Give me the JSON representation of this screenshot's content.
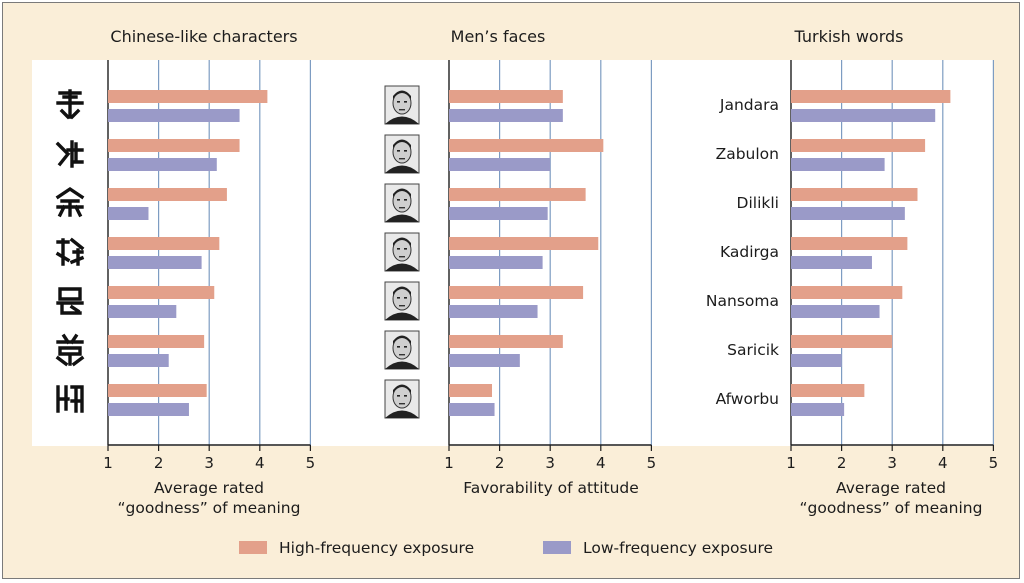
{
  "colors": {
    "high": "#e3a08a",
    "low": "#9a9ac8",
    "panel_bg": "#ffffff",
    "outer_bg": "#faeed8",
    "grid": "#7d9cc2",
    "axis": "#1e1e1e"
  },
  "chart_data": [
    {
      "type": "bar",
      "orientation": "horizontal",
      "title": "Chinese-like characters",
      "xlabel": [
        "Average rated",
        "“goodness” of meaning"
      ],
      "xlim": [
        1,
        5
      ],
      "xticks": [
        "1",
        "2",
        "3",
        "4",
        "5"
      ],
      "categories": [
        "character-1",
        "character-2",
        "character-3",
        "character-4",
        "character-5",
        "character-6",
        "character-7"
      ],
      "category_kind": "character-icon",
      "series": [
        {
          "name": "High-frequency exposure",
          "values": [
            4.15,
            3.6,
            3.35,
            3.2,
            3.1,
            2.9,
            2.95
          ]
        },
        {
          "name": "Low-frequency exposure",
          "values": [
            3.6,
            3.15,
            1.8,
            2.85,
            2.35,
            2.2,
            2.6
          ]
        }
      ]
    },
    {
      "type": "bar",
      "orientation": "horizontal",
      "title": "Men’s faces",
      "xlabel": [
        "Favorability of attitude"
      ],
      "xlim": [
        1,
        5
      ],
      "xticks": [
        "1",
        "2",
        "3",
        "4",
        "5"
      ],
      "categories": [
        "face-1",
        "face-2",
        "face-3",
        "face-4",
        "face-5",
        "face-6",
        "face-7"
      ],
      "category_kind": "face-icon",
      "series": [
        {
          "name": "High-frequency exposure",
          "values": [
            3.25,
            4.05,
            3.7,
            3.95,
            3.65,
            3.25,
            1.85
          ]
        },
        {
          "name": "Low-frequency exposure",
          "values": [
            3.25,
            3.0,
            2.95,
            2.85,
            2.75,
            2.4,
            1.9
          ]
        }
      ]
    },
    {
      "type": "bar",
      "orientation": "horizontal",
      "title": "Turkish words",
      "xlabel": [
        "Average rated",
        "“goodness” of meaning"
      ],
      "xlim": [
        1,
        5
      ],
      "xticks": [
        "1",
        "2",
        "3",
        "4",
        "5"
      ],
      "categories": [
        "Jandara",
        "Zabulon",
        "Dilikli",
        "Kadirga",
        "Nansoma",
        "Saricik",
        "Afworbu"
      ],
      "category_kind": "text",
      "series": [
        {
          "name": "High-frequency exposure",
          "values": [
            4.15,
            3.65,
            3.5,
            3.3,
            3.2,
            3.0,
            2.45
          ]
        },
        {
          "name": "Low-frequency exposure",
          "values": [
            3.85,
            2.85,
            3.25,
            2.6,
            2.75,
            2.0,
            2.05
          ]
        }
      ]
    }
  ],
  "legend": {
    "high_label": "High-frequency exposure",
    "low_label": "Low-frequency exposure",
    "position": "bottom-center"
  }
}
